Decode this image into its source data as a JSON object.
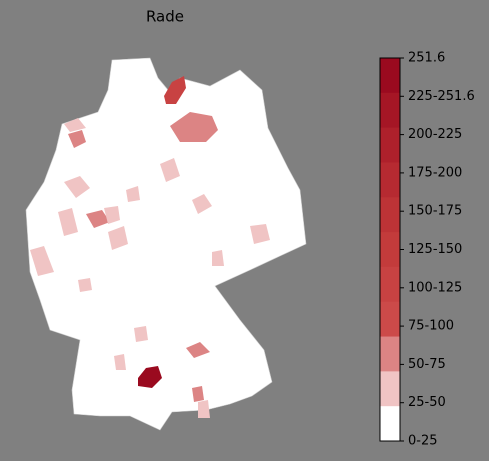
{
  "title": "Rade",
  "legend": {
    "labels": [
      "251.6",
      "225-251.6",
      "200-225",
      "175-200",
      "150-175",
      "125-150",
      "100-125",
      "75-100",
      "50-75",
      "25-50",
      "0-25"
    ],
    "colors": [
      "#9a0a1f",
      "#a51625",
      "#ae202b",
      "#b62a31",
      "#bd3336",
      "#c33b3b",
      "#c84242",
      "#cc4a49",
      "#dc8484",
      "#f0c4c4",
      "#ffffff"
    ]
  }
}
